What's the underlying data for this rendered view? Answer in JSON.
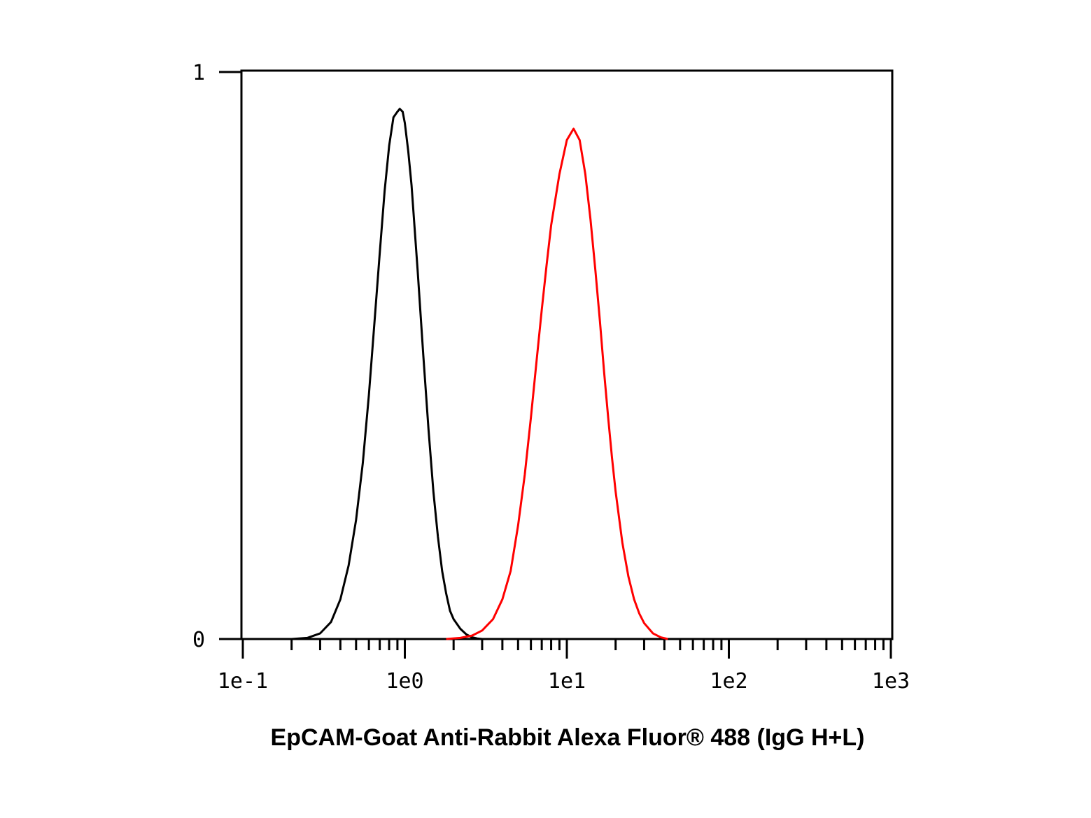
{
  "chart_data": {
    "type": "line",
    "title": "",
    "xlabel": "EpCAM-Goat Anti-Rabbit Alexa Fluor® 488 (IgG H+L)",
    "ylabel": "",
    "x_scale": "log",
    "xlim": [
      0.1,
      1000
    ],
    "ylim": [
      0,
      1
    ],
    "x_tick_labels": [
      "1e-1",
      "1e0",
      "1e1",
      "1e2",
      "1e3"
    ],
    "x_tick_values": [
      0.1,
      1,
      10,
      100,
      1000
    ],
    "y_tick_labels": [
      "0",
      "1"
    ],
    "y_tick_values": [
      0,
      1
    ],
    "grid": false,
    "legend": "none",
    "series": [
      {
        "color": "#000000",
        "x": [
          0.2,
          0.25,
          0.3,
          0.35,
          0.4,
          0.45,
          0.5,
          0.55,
          0.6,
          0.65,
          0.7,
          0.75,
          0.8,
          0.85,
          0.9,
          0.93,
          0.97,
          1.0,
          1.05,
          1.1,
          1.2,
          1.3,
          1.4,
          1.5,
          1.6,
          1.7,
          1.8,
          1.9,
          2.0,
          2.2,
          2.4,
          2.6,
          2.8,
          3.0
        ],
        "y": [
          0.0,
          0.002,
          0.01,
          0.03,
          0.07,
          0.13,
          0.21,
          0.31,
          0.43,
          0.56,
          0.68,
          0.79,
          0.87,
          0.92,
          0.93,
          0.935,
          0.93,
          0.91,
          0.86,
          0.8,
          0.65,
          0.5,
          0.37,
          0.26,
          0.18,
          0.12,
          0.08,
          0.05,
          0.035,
          0.018,
          0.008,
          0.003,
          0.001,
          0.0
        ]
      },
      {
        "color": "#ff0000",
        "x": [
          1.8,
          2.2,
          2.6,
          3.0,
          3.5,
          4.0,
          4.5,
          5.0,
          5.5,
          6.0,
          6.5,
          7.0,
          7.5,
          8.0,
          9.0,
          10.0,
          11.0,
          12.0,
          13.0,
          14.0,
          15.0,
          16.0,
          17.0,
          18.0,
          19.0,
          20.0,
          22.0,
          24.0,
          26.0,
          28.0,
          30.0,
          34.0,
          38.0,
          42.0
        ],
        "y": [
          0.0,
          0.002,
          0.006,
          0.015,
          0.035,
          0.07,
          0.12,
          0.2,
          0.29,
          0.39,
          0.49,
          0.58,
          0.66,
          0.73,
          0.82,
          0.88,
          0.9,
          0.88,
          0.82,
          0.74,
          0.65,
          0.56,
          0.47,
          0.39,
          0.32,
          0.26,
          0.17,
          0.11,
          0.07,
          0.045,
          0.028,
          0.01,
          0.003,
          0.0
        ]
      }
    ]
  }
}
